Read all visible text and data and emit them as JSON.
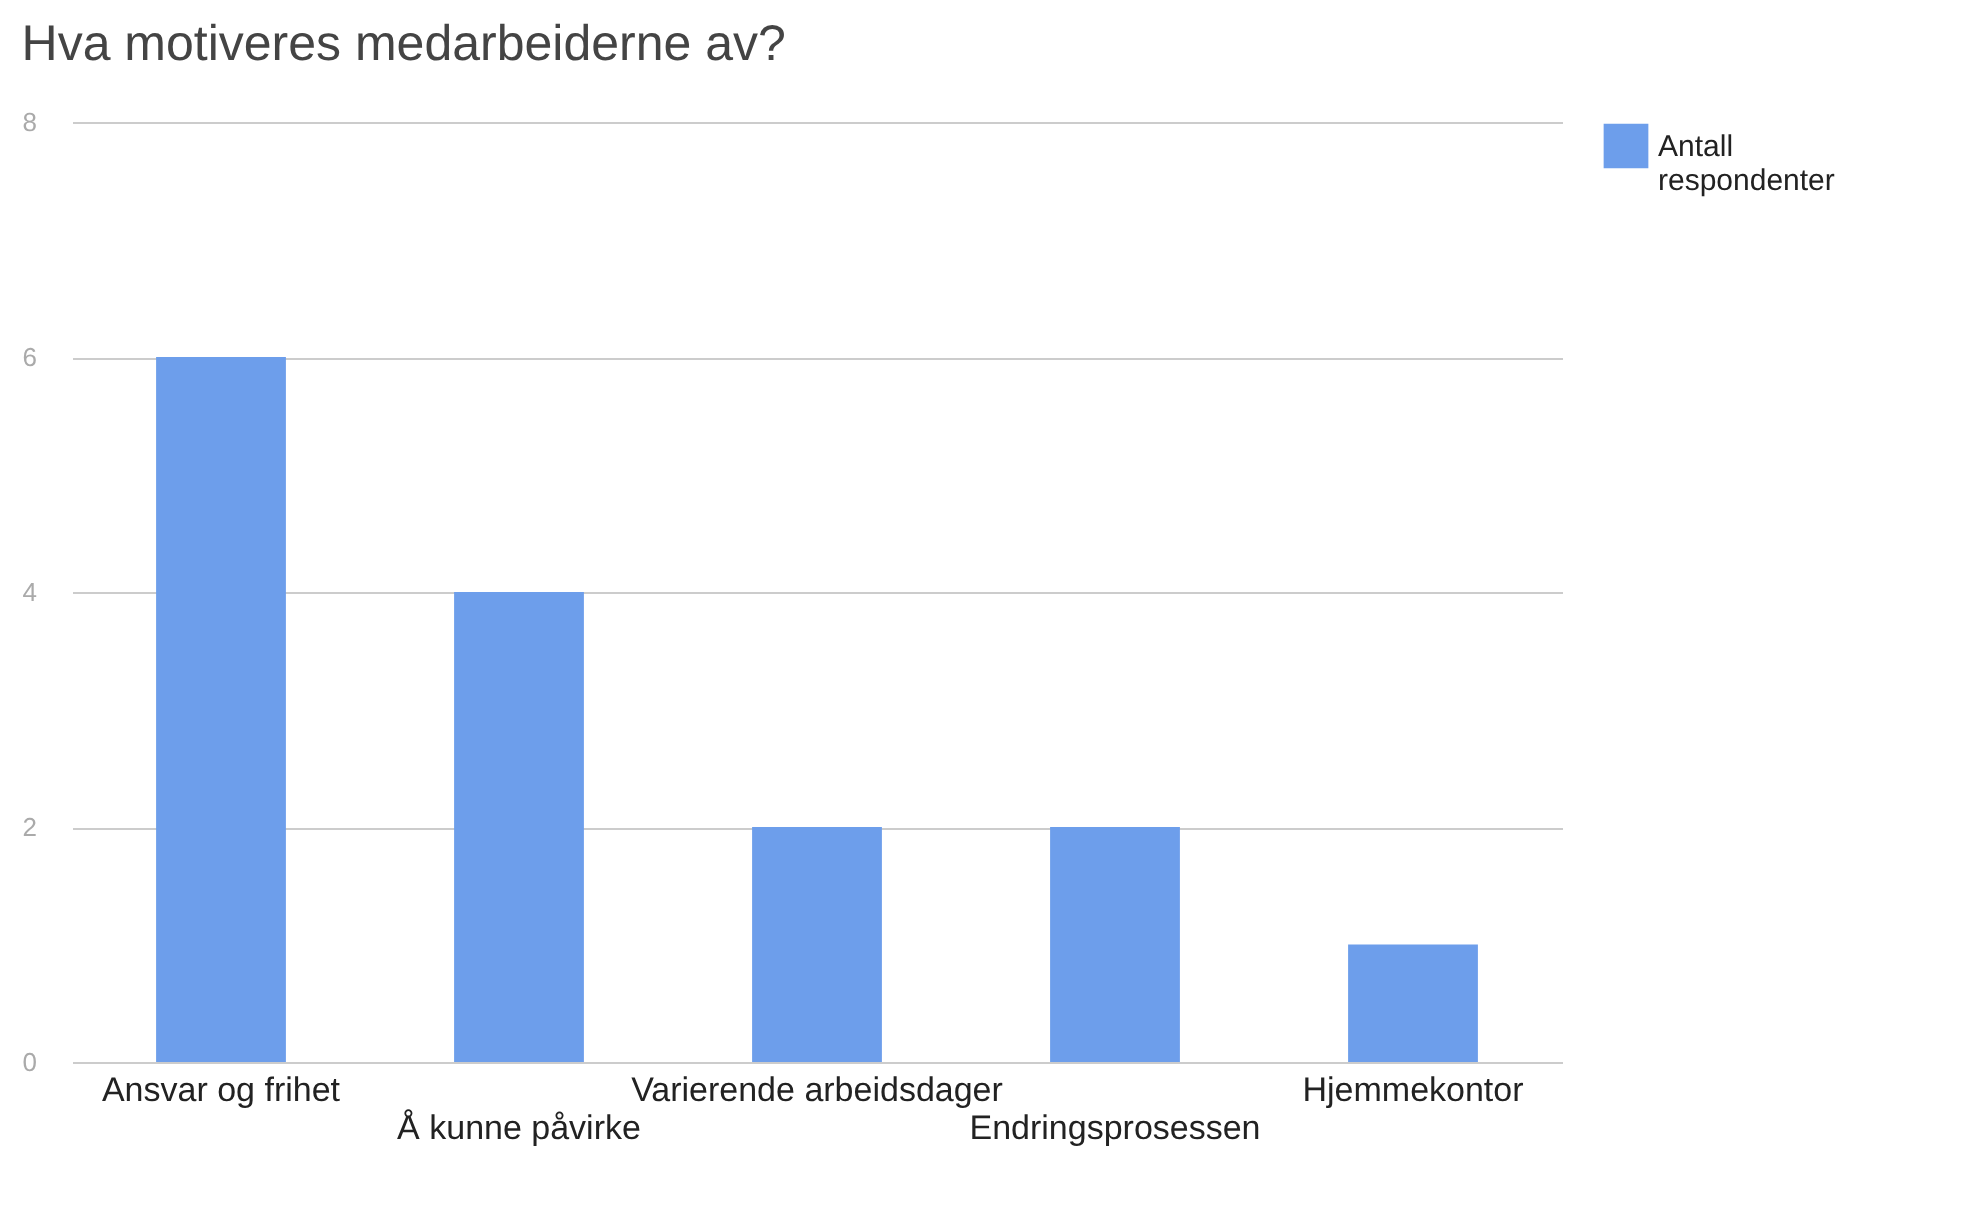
{
  "chart_data": {
    "type": "bar",
    "title": "Hva motiveres medarbeiderne av?",
    "categories": [
      "Ansvar og frihet",
      "Å kunne påvirke",
      "Varierende arbeidsdager",
      "Endringsprosessen",
      "Hjemmekontor"
    ],
    "series": [
      {
        "name": "Antall respondenter",
        "color": "#6d9eeb",
        "values": [
          6,
          4,
          2,
          2,
          1
        ]
      }
    ],
    "ylim": [
      0,
      8
    ],
    "yticks": [
      0,
      2,
      4,
      6,
      8
    ],
    "grid": "y",
    "legend": "top right"
  }
}
